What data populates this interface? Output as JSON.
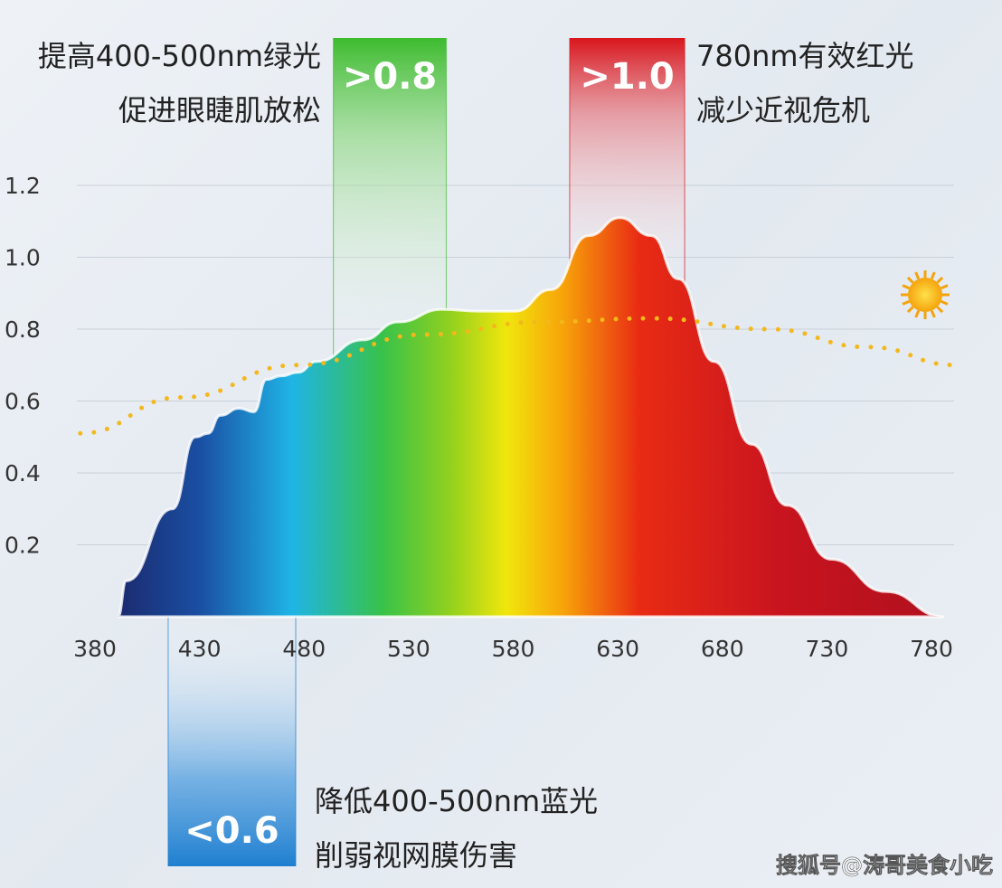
{
  "chart_data": {
    "type": "area",
    "title": "",
    "xlabel": "",
    "ylabel": "",
    "xlim": [
      380,
      780
    ],
    "ylim": [
      0,
      1.2
    ],
    "grid": true,
    "x_ticks": [
      "380",
      "430",
      "480",
      "530",
      "580",
      "630",
      "680",
      "730",
      "780"
    ],
    "y_ticks": [
      "0.2",
      "0.4",
      "0.6",
      "0.8",
      "1.0",
      "1.2"
    ],
    "series": [
      {
        "name": "spectrum",
        "x": [
          391,
          395,
          417,
          428,
          434,
          440,
          449,
          456,
          462,
          469,
          477,
          486,
          508,
          525,
          546,
          564,
          581,
          598,
          616,
          631,
          646,
          659,
          676,
          694,
          711,
          732,
          758,
          786
        ],
        "y": [
          0,
          0.1,
          0.3,
          0.5,
          0.51,
          0.56,
          0.58,
          0.57,
          0.66,
          0.67,
          0.68,
          0.71,
          0.77,
          0.82,
          0.855,
          0.85,
          0.85,
          0.91,
          1.06,
          1.11,
          1.06,
          0.94,
          0.71,
          0.48,
          0.31,
          0.16,
          0.07,
          0
        ]
      },
      {
        "name": "sunlight",
        "style": "dotted",
        "color": "#f2b81c",
        "x": [
          373,
          421,
          477,
          538,
          594,
          646,
          702,
          750,
          792
        ],
        "y": [
          0.51,
          0.61,
          0.7,
          0.785,
          0.82,
          0.83,
          0.8,
          0.75,
          0.7
        ]
      }
    ],
    "annotations": [
      {
        "badge": ">0.8",
        "color": "#3dbb2e",
        "range_nm": [
          494,
          548
        ],
        "lines": [
          "提高400-500nm绿光",
          "促进眼睫肌放松"
        ]
      },
      {
        "badge": ">1.0",
        "color": "#d8151c",
        "range_nm": [
          607,
          662
        ],
        "lines": [
          "780nm有效红光",
          "减少近视危机"
        ]
      },
      {
        "badge": "<0.6",
        "color": "#1f7fd0",
        "range_nm": [
          415,
          476
        ],
        "lines": [
          "降低400-500nm蓝光",
          "削弱视网膜伤害"
        ]
      }
    ],
    "icon": "sun-icon"
  },
  "watermark": "搜狐号@涛哥美食小吃"
}
